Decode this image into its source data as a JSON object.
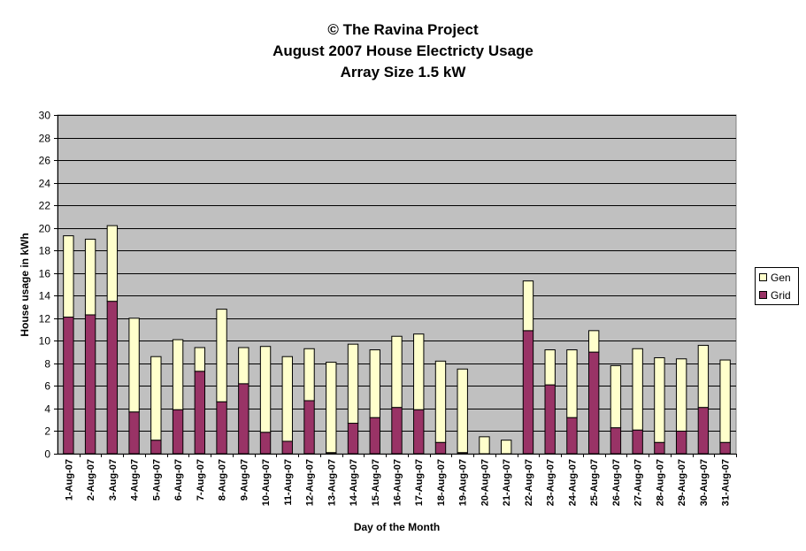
{
  "chart_data": {
    "type": "bar",
    "stacked": true,
    "title": [
      "© The Ravina Project",
      "August 2007 House Electricty Usage",
      "Array Size 1.5 kW"
    ],
    "xlabel": "Day of the Month",
    "ylabel": "House usage in kWh",
    "ylim": [
      0,
      30
    ],
    "yticks": [
      0,
      2,
      4,
      6,
      8,
      10,
      12,
      14,
      16,
      18,
      20,
      22,
      24,
      26,
      28,
      30
    ],
    "grid": true,
    "legend_position": "right",
    "categories": [
      "1-Aug-07",
      "2-Aug-07",
      "3-Aug-07",
      "4-Aug-07",
      "5-Aug-07",
      "6-Aug-07",
      "7-Aug-07",
      "8-Aug-07",
      "9-Aug-07",
      "10-Aug-07",
      "11-Aug-07",
      "12-Aug-07",
      "13-Aug-07",
      "14-Aug-07",
      "15-Aug-07",
      "16-Aug-07",
      "17-Aug-07",
      "18-Aug-07",
      "19-Aug-07",
      "20-Aug-07",
      "21-Aug-07",
      "22-Aug-07",
      "23-Aug-07",
      "24-Aug-07",
      "25-Aug-07",
      "26-Aug-07",
      "27-Aug-07",
      "28-Aug-07",
      "29-Aug-07",
      "30-Aug-07",
      "31-Aug-07"
    ],
    "series": [
      {
        "name": "Grid",
        "color": "#993366",
        "values": [
          12.1,
          12.3,
          13.5,
          3.7,
          1.2,
          3.9,
          7.3,
          4.6,
          6.2,
          1.9,
          1.1,
          4.7,
          0.1,
          2.7,
          3.2,
          4.1,
          3.9,
          1.0,
          0.1,
          0.0,
          0.0,
          10.9,
          6.1,
          3.2,
          9.0,
          2.3,
          2.1,
          1.0,
          2.0,
          4.1,
          1.0
        ]
      },
      {
        "name": "Gen",
        "color": "#FFFFCC",
        "values": [
          7.2,
          6.7,
          6.7,
          8.3,
          7.4,
          6.2,
          2.1,
          8.2,
          3.2,
          7.6,
          7.5,
          4.6,
          8.0,
          7.0,
          6.0,
          6.3,
          6.7,
          7.2,
          7.4,
          1.5,
          1.2,
          4.4,
          3.1,
          6.0,
          1.9,
          5.5,
          7.2,
          7.5,
          6.4,
          5.5,
          7.3
        ]
      }
    ]
  },
  "colors": {
    "plot_background": "#C0C0C0",
    "gridline": "#000000",
    "grid_color": "#993366",
    "gen_color": "#FFFFCC"
  }
}
